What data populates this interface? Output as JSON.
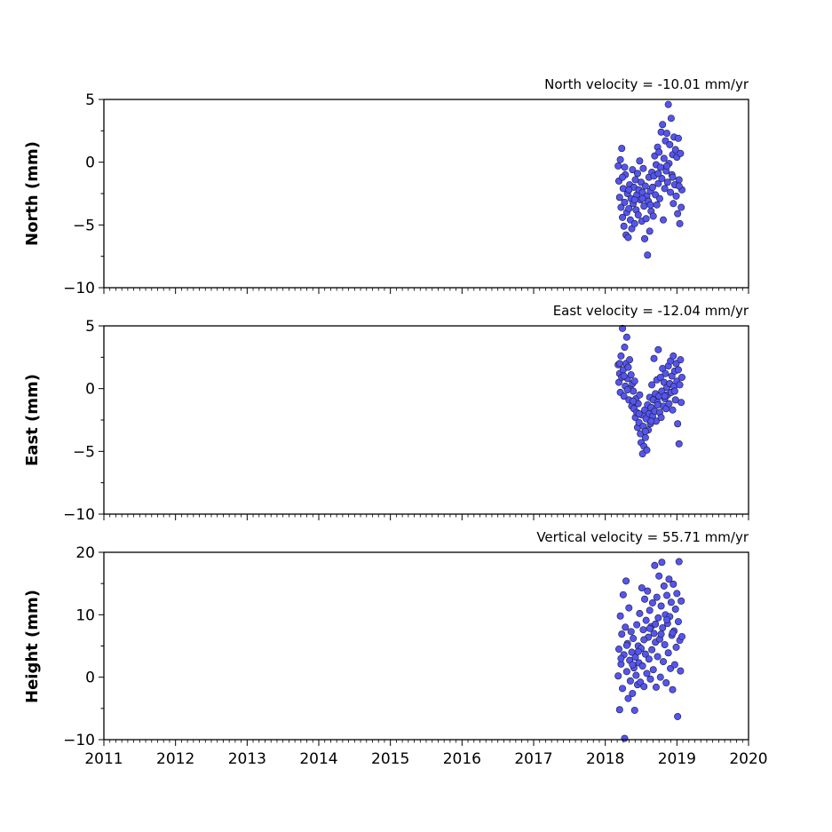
{
  "chart_data": [
    {
      "type": "scatter",
      "panel": "north",
      "ylabel": "North (mm)",
      "annotation": "North velocity = -10.01 mm/yr",
      "ylim": [
        -10,
        5
      ],
      "yticks": [
        5,
        0,
        -5,
        -10
      ],
      "ytick_labels": [
        "5",
        "0",
        "−5",
        "−10"
      ],
      "xlim": [
        2011,
        2020
      ],
      "marker_color": "#5555ee",
      "edge_color": "#1a1a3a",
      "points": [
        [
          2018.18,
          -0.3
        ],
        [
          2018.19,
          -1.5
        ],
        [
          2018.2,
          -2.8
        ],
        [
          2018.21,
          0.2
        ],
        [
          2018.22,
          -3.6
        ],
        [
          2018.23,
          1.1
        ],
        [
          2018.24,
          -4.4
        ],
        [
          2018.25,
          -2.1
        ],
        [
          2018.26,
          -5.1
        ],
        [
          2018.27,
          -3.2
        ],
        [
          2018.28,
          -1.0
        ],
        [
          2018.29,
          -5.8
        ],
        [
          2018.3,
          -4.0
        ],
        [
          2018.31,
          -2.5
        ],
        [
          2018.32,
          -6.0
        ],
        [
          2018.33,
          -3.7
        ],
        [
          2018.34,
          -1.8
        ],
        [
          2018.35,
          -4.6
        ],
        [
          2018.36,
          -2.9
        ],
        [
          2018.37,
          -5.3
        ],
        [
          2018.38,
          -0.6
        ],
        [
          2018.39,
          -3.3
        ],
        [
          2018.4,
          -2.0
        ],
        [
          2018.41,
          -4.9
        ],
        [
          2018.42,
          -1.4
        ],
        [
          2018.43,
          -3.8
        ],
        [
          2018.44,
          -2.6
        ],
        [
          2018.45,
          -0.9
        ],
        [
          2018.46,
          -4.2
        ],
        [
          2018.47,
          -2.2
        ],
        [
          2018.48,
          0.1
        ],
        [
          2018.49,
          -3.0
        ],
        [
          2018.5,
          -1.6
        ],
        [
          2018.51,
          -4.7
        ],
        [
          2018.52,
          -2.4
        ],
        [
          2018.53,
          -0.5
        ],
        [
          2018.54,
          -3.5
        ],
        [
          2018.55,
          -6.1
        ],
        [
          2018.56,
          -1.9
        ],
        [
          2018.57,
          -4.5
        ],
        [
          2018.58,
          -2.7
        ],
        [
          2018.59,
          -7.4
        ],
        [
          2018.6,
          -3.1
        ],
        [
          2018.61,
          -1.2
        ],
        [
          2018.62,
          -5.5
        ],
        [
          2018.63,
          -2.3
        ],
        [
          2018.64,
          -3.9
        ],
        [
          2018.65,
          -0.8
        ],
        [
          2018.66,
          -2.0
        ],
        [
          2018.67,
          -4.3
        ],
        [
          2018.68,
          -1.1
        ],
        [
          2018.69,
          0.5
        ],
        [
          2018.7,
          -2.6
        ],
        [
          2018.71,
          -0.2
        ],
        [
          2018.72,
          -3.4
        ],
        [
          2018.73,
          1.2
        ],
        [
          2018.74,
          -1.7
        ],
        [
          2018.75,
          0.8
        ],
        [
          2018.76,
          -2.9
        ],
        [
          2018.77,
          -0.4
        ],
        [
          2018.78,
          2.4
        ],
        [
          2018.79,
          -1.3
        ],
        [
          2018.8,
          3.0
        ],
        [
          2018.81,
          -4.6
        ],
        [
          2018.82,
          0.3
        ],
        [
          2018.83,
          -2.1
        ],
        [
          2018.84,
          1.7
        ],
        [
          2018.85,
          -0.7
        ],
        [
          2018.86,
          2.3
        ],
        [
          2018.87,
          -1.6
        ],
        [
          2018.88,
          4.6
        ],
        [
          2018.89,
          -0.1
        ],
        [
          2018.9,
          1.4
        ],
        [
          2018.91,
          -2.4
        ],
        [
          2018.92,
          3.5
        ],
        [
          2018.93,
          -1.0
        ],
        [
          2018.94,
          0.6
        ],
        [
          2018.95,
          -3.3
        ],
        [
          2018.96,
          2.0
        ],
        [
          2018.97,
          -1.8
        ],
        [
          2018.98,
          1.0
        ],
        [
          2018.99,
          -2.7
        ],
        [
          2019.0,
          0.4
        ],
        [
          2019.01,
          -4.1
        ],
        [
          2019.02,
          1.9
        ],
        [
          2019.03,
          -1.4
        ],
        [
          2019.04,
          -4.9
        ],
        [
          2019.05,
          0.7
        ],
        [
          2019.06,
          -3.6
        ],
        [
          2019.07,
          -2.2
        ],
        [
          2018.24,
          -1.2
        ],
        [
          2018.27,
          -0.4
        ],
        [
          2018.33,
          -2.2
        ],
        [
          2018.41,
          -3.0
        ],
        [
          2018.52,
          -2.9
        ],
        [
          2018.63,
          -3.4
        ],
        [
          2018.74,
          -0.9
        ],
        [
          2018.86,
          -0.3
        ],
        [
          2018.94,
          -1.2
        ],
        [
          2019.03,
          -1.9
        ]
      ]
    },
    {
      "type": "scatter",
      "panel": "east",
      "ylabel": "East (mm)",
      "annotation": "East velocity = -12.04 mm/yr",
      "ylim": [
        -10,
        5
      ],
      "yticks": [
        5,
        0,
        -5,
        -10
      ],
      "ytick_labels": [
        "5",
        "0",
        "−5",
        "−10"
      ],
      "xlim": [
        2011,
        2020
      ],
      "marker_color": "#5555ee",
      "edge_color": "#1a1a3a",
      "points": [
        [
          2018.18,
          1.9
        ],
        [
          2018.19,
          0.5
        ],
        [
          2018.2,
          1.2
        ],
        [
          2018.21,
          -0.3
        ],
        [
          2018.22,
          2.6
        ],
        [
          2018.23,
          0.9
        ],
        [
          2018.24,
          4.8
        ],
        [
          2018.25,
          1.5
        ],
        [
          2018.26,
          -0.6
        ],
        [
          2018.27,
          3.3
        ],
        [
          2018.28,
          0.2
        ],
        [
          2018.29,
          2.0
        ],
        [
          2018.3,
          4.1
        ],
        [
          2018.31,
          0.8
        ],
        [
          2018.32,
          1.7
        ],
        [
          2018.33,
          -0.9
        ],
        [
          2018.34,
          2.3
        ],
        [
          2018.35,
          0.0
        ],
        [
          2018.36,
          1.1
        ],
        [
          2018.37,
          -1.4
        ],
        [
          2018.38,
          0.4
        ],
        [
          2018.39,
          -0.2
        ],
        [
          2018.4,
          -1.6
        ],
        [
          2018.41,
          0.6
        ],
        [
          2018.42,
          -2.3
        ],
        [
          2018.43,
          -0.8
        ],
        [
          2018.44,
          -1.9
        ],
        [
          2018.45,
          -3.1
        ],
        [
          2018.46,
          -1.2
        ],
        [
          2018.47,
          -2.7
        ],
        [
          2018.48,
          -0.5
        ],
        [
          2018.49,
          -3.6
        ],
        [
          2018.5,
          -4.3
        ],
        [
          2018.51,
          -2.1
        ],
        [
          2018.52,
          -5.2
        ],
        [
          2018.53,
          -3.0
        ],
        [
          2018.54,
          -4.6
        ],
        [
          2018.55,
          -1.7
        ],
        [
          2018.56,
          -3.9
        ],
        [
          2018.57,
          -2.4
        ],
        [
          2018.58,
          -4.9
        ],
        [
          2018.59,
          -1.3
        ],
        [
          2018.6,
          -3.3
        ],
        [
          2018.61,
          -2.0
        ],
        [
          2018.62,
          -0.7
        ],
        [
          2018.63,
          -2.8
        ],
        [
          2018.64,
          -1.5
        ],
        [
          2018.65,
          0.3
        ],
        [
          2018.66,
          -2.2
        ],
        [
          2018.67,
          -0.9
        ],
        [
          2018.68,
          2.4
        ],
        [
          2018.69,
          -1.8
        ],
        [
          2018.7,
          -0.4
        ],
        [
          2018.71,
          -2.6
        ],
        [
          2018.72,
          0.7
        ],
        [
          2018.73,
          -1.1
        ],
        [
          2018.74,
          3.1
        ],
        [
          2018.75,
          -0.6
        ],
        [
          2018.76,
          -1.9
        ],
        [
          2018.77,
          0.9
        ],
        [
          2018.78,
          -2.3
        ],
        [
          2018.79,
          -0.2
        ],
        [
          2018.8,
          1.6
        ],
        [
          2018.81,
          -1.4
        ],
        [
          2018.82,
          0.5
        ],
        [
          2018.83,
          -0.8
        ],
        [
          2018.84,
          1.2
        ],
        [
          2018.85,
          -1.6
        ],
        [
          2018.86,
          0.1
        ],
        [
          2018.87,
          -0.5
        ],
        [
          2018.88,
          1.8
        ],
        [
          2018.89,
          -1.2
        ],
        [
          2018.9,
          0.4
        ],
        [
          2018.91,
          2.2
        ],
        [
          2018.92,
          -0.3
        ],
        [
          2018.93,
          1.0
        ],
        [
          2018.94,
          -1.7
        ],
        [
          2018.95,
          2.6
        ],
        [
          2018.96,
          0.2
        ],
        [
          2018.97,
          1.4
        ],
        [
          2018.98,
          -0.9
        ],
        [
          2018.99,
          2.0
        ],
        [
          2019.0,
          0.6
        ],
        [
          2019.01,
          -2.8
        ],
        [
          2019.02,
          1.5
        ],
        [
          2019.03,
          -4.4
        ],
        [
          2019.04,
          0.3
        ],
        [
          2019.05,
          2.3
        ],
        [
          2019.06,
          -1.1
        ],
        [
          2019.07,
          0.9
        ],
        [
          2018.2,
          2.0
        ],
        [
          2018.26,
          1.0
        ],
        [
          2018.31,
          -0.1
        ],
        [
          2018.39,
          -1.0
        ],
        [
          2018.47,
          -2.0
        ],
        [
          2018.56,
          -3.4
        ],
        [
          2018.64,
          -2.6
        ],
        [
          2018.73,
          -1.3
        ],
        [
          2018.83,
          -0.6
        ],
        [
          2018.97,
          -0.2
        ]
      ]
    },
    {
      "type": "scatter",
      "panel": "height",
      "ylabel": "Height (mm)",
      "annotation": "Vertical velocity = 55.71 mm/yr",
      "ylim": [
        -10,
        20
      ],
      "yticks": [
        20,
        10,
        0,
        -10
      ],
      "ytick_labels": [
        "20",
        "10",
        "0",
        "−10"
      ],
      "xlim": [
        2011,
        2020
      ],
      "xticks": [
        2011,
        2012,
        2013,
        2014,
        2015,
        2016,
        2017,
        2018,
        2019,
        2020
      ],
      "xtick_labels": [
        "2011",
        "2012",
        "2013",
        "2014",
        "2015",
        "2016",
        "2017",
        "2018",
        "2019",
        "2020"
      ],
      "marker_color": "#5555ee",
      "edge_color": "#1a1a3a",
      "points": [
        [
          2018.18,
          0.2
        ],
        [
          2018.19,
          4.5
        ],
        [
          2018.2,
          -5.2
        ],
        [
          2018.21,
          9.8
        ],
        [
          2018.22,
          2.1
        ],
        [
          2018.23,
          6.9
        ],
        [
          2018.24,
          -1.8
        ],
        [
          2018.25,
          13.2
        ],
        [
          2018.26,
          3.6
        ],
        [
          2018.27,
          -9.8
        ],
        [
          2018.28,
          8.0
        ],
        [
          2018.29,
          15.4
        ],
        [
          2018.3,
          0.9
        ],
        [
          2018.31,
          5.4
        ],
        [
          2018.32,
          -3.4
        ],
        [
          2018.33,
          11.1
        ],
        [
          2018.34,
          2.7
        ],
        [
          2018.35,
          -0.6
        ],
        [
          2018.36,
          7.3
        ],
        [
          2018.37,
          4.0
        ],
        [
          2018.38,
          -2.6
        ],
        [
          2018.39,
          6.2
        ],
        [
          2018.4,
          1.5
        ],
        [
          2018.41,
          -5.3
        ],
        [
          2018.42,
          3.2
        ],
        [
          2018.43,
          0.3
        ],
        [
          2018.44,
          8.4
        ],
        [
          2018.45,
          -1.2
        ],
        [
          2018.46,
          5.0
        ],
        [
          2018.47,
          2.3
        ],
        [
          2018.48,
          10.2
        ],
        [
          2018.49,
          -0.8
        ],
        [
          2018.5,
          4.6
        ],
        [
          2018.51,
          14.3
        ],
        [
          2018.52,
          1.8
        ],
        [
          2018.53,
          7.6
        ],
        [
          2018.54,
          -1.5
        ],
        [
          2018.55,
          12.5
        ],
        [
          2018.56,
          3.7
        ],
        [
          2018.57,
          9.1
        ],
        [
          2018.58,
          0.6
        ],
        [
          2018.59,
          13.8
        ],
        [
          2018.6,
          6.4
        ],
        [
          2018.61,
          2.9
        ],
        [
          2018.62,
          10.7
        ],
        [
          2018.63,
          -0.3
        ],
        [
          2018.64,
          8.1
        ],
        [
          2018.65,
          4.4
        ],
        [
          2018.66,
          11.9
        ],
        [
          2018.67,
          1.2
        ],
        [
          2018.68,
          7.0
        ],
        [
          2018.69,
          17.9
        ],
        [
          2018.7,
          5.6
        ],
        [
          2018.71,
          -1.6
        ],
        [
          2018.72,
          12.8
        ],
        [
          2018.73,
          3.3
        ],
        [
          2018.74,
          9.5
        ],
        [
          2018.75,
          16.2
        ],
        [
          2018.76,
          6.1
        ],
        [
          2018.77,
          0.0
        ],
        [
          2018.78,
          11.4
        ],
        [
          2018.79,
          18.4
        ],
        [
          2018.8,
          7.9
        ],
        [
          2018.81,
          2.5
        ],
        [
          2018.82,
          14.6
        ],
        [
          2018.83,
          5.2
        ],
        [
          2018.84,
          10.0
        ],
        [
          2018.85,
          -0.9
        ],
        [
          2018.86,
          13.1
        ],
        [
          2018.87,
          8.6
        ],
        [
          2018.88,
          3.9
        ],
        [
          2018.89,
          15.7
        ],
        [
          2018.9,
          9.7
        ],
        [
          2018.91,
          1.4
        ],
        [
          2018.92,
          12.0
        ],
        [
          2018.93,
          6.7
        ],
        [
          2018.94,
          -2.0
        ],
        [
          2018.95,
          14.9
        ],
        [
          2018.96,
          7.4
        ],
        [
          2018.97,
          2.0
        ],
        [
          2018.98,
          10.9
        ],
        [
          2018.99,
          4.8
        ],
        [
          2019.0,
          13.4
        ],
        [
          2019.01,
          -6.3
        ],
        [
          2019.02,
          8.9
        ],
        [
          2019.03,
          18.5
        ],
        [
          2019.04,
          5.9
        ],
        [
          2019.05,
          1.0
        ],
        [
          2019.06,
          12.2
        ],
        [
          2019.07,
          6.5
        ],
        [
          2018.22,
          3.0
        ],
        [
          2018.3,
          5.1
        ],
        [
          2018.38,
          2.0
        ],
        [
          2018.46,
          4.1
        ],
        [
          2018.54,
          6.0
        ],
        [
          2018.62,
          7.8
        ],
        [
          2018.7,
          8.5
        ],
        [
          2018.78,
          6.9
        ],
        [
          2018.86,
          9.2
        ],
        [
          2018.94,
          7.1
        ]
      ]
    }
  ]
}
